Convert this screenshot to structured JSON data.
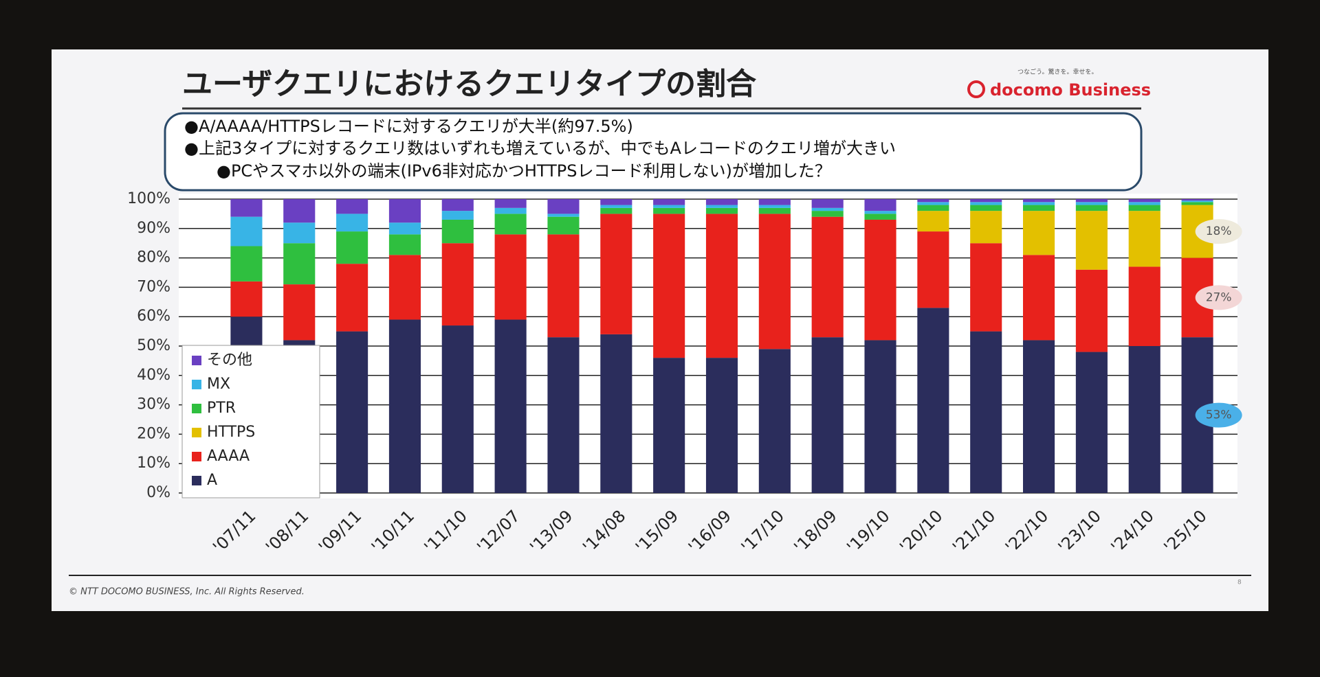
{
  "header": {
    "title": "ユーザクエリにおけるクエリタイプの割合",
    "tagline": "つなごう。驚きを。幸せを。",
    "logo": "docomo Business"
  },
  "bullets": [
    "●A/AAAA/HTTPSレコードに対するクエリが大半(約97.5%)",
    "●上記3タイプに対するクエリ数はいずれも増えているが、中でもAレコードのクエリ増が大きい",
    "●PCやスマホ以外の端末(IPv6非対応かつHTTPSレコード利用しない)が増加した？"
  ],
  "footer": {
    "copyright": "© NTT DOCOMO BUSINESS, Inc. All Rights Reserved.",
    "page": "8"
  },
  "chart_data": {
    "type": "stacked-bar",
    "categories": [
      "'07/11",
      "'08/11",
      "'09/11",
      "'10/11",
      "'11/10",
      "'12/07",
      "'13/09",
      "'14/08",
      "'15/09",
      "'16/09",
      "'17/10",
      "'18/09",
      "'19/10",
      "'20/10",
      "'21/10",
      "'22/10",
      "'23/10",
      "'24/10",
      "'25/10"
    ],
    "series": [
      {
        "name": "A",
        "color": "#2b2d5c",
        "values": [
          60,
          52,
          55,
          59,
          57,
          59,
          53,
          54,
          46,
          46,
          49,
          53,
          52,
          63,
          55,
          52,
          48,
          50,
          53
        ],
        "value_labels": [
          null,
          null,
          null,
          null,
          null,
          null,
          null,
          null,
          null,
          null,
          null,
          null,
          null,
          null,
          null,
          null,
          null,
          null,
          "53%"
        ]
      },
      {
        "name": "AAAA",
        "color": "#e8221c",
        "values": [
          12,
          19,
          23,
          22,
          28,
          29,
          35,
          41,
          49,
          49,
          46,
          41,
          41,
          26,
          30,
          29,
          28,
          27,
          27
        ],
        "value_labels": [
          null,
          null,
          null,
          null,
          null,
          null,
          null,
          null,
          null,
          null,
          null,
          null,
          null,
          null,
          null,
          null,
          null,
          null,
          "27%"
        ]
      },
      {
        "name": "HTTPS",
        "color": "#e3c000",
        "values": [
          0,
          0,
          0,
          0,
          0,
          0,
          0,
          0,
          0,
          0,
          0,
          0,
          0,
          7,
          11,
          15,
          20,
          19,
          18
        ],
        "value_labels": [
          null,
          null,
          null,
          null,
          null,
          null,
          null,
          null,
          null,
          null,
          null,
          null,
          null,
          null,
          null,
          null,
          null,
          null,
          "18%"
        ]
      },
      {
        "name": "PTR",
        "color": "#2fbf3f",
        "values": [
          12,
          14,
          11,
          7,
          8,
          7,
          6,
          2,
          2,
          2,
          2,
          2,
          2,
          2,
          2,
          2,
          2,
          2,
          1
        ]
      },
      {
        "name": "MX",
        "color": "#38b4e6",
        "values": [
          10,
          7,
          6,
          4,
          3,
          2,
          1,
          1,
          1,
          1,
          1,
          1,
          1,
          1,
          1,
          1,
          1,
          1,
          0.5
        ]
      },
      {
        "name": "その他",
        "color": "#6a40c2",
        "values": [
          6,
          8,
          5,
          8,
          4,
          3,
          5,
          2,
          2,
          2,
          2,
          3,
          4,
          1,
          1,
          1,
          1,
          1,
          0.5
        ]
      }
    ],
    "ylim": [
      0,
      100
    ],
    "yticks": [
      {
        "value": 0,
        "label": "0%"
      },
      {
        "value": 10,
        "label": "10%"
      },
      {
        "value": 20,
        "label": "20%"
      },
      {
        "value": 30,
        "label": "30%"
      },
      {
        "value": 40,
        "label": "40%"
      },
      {
        "value": 50,
        "label": "50%"
      },
      {
        "value": 60,
        "label": "60%"
      },
      {
        "value": 70,
        "label": "70%"
      },
      {
        "value": 80,
        "label": "80%"
      },
      {
        "value": 90,
        "label": "90%"
      },
      {
        "value": 100,
        "label": "100%"
      }
    ],
    "grid": true,
    "legend": "lower-left"
  }
}
